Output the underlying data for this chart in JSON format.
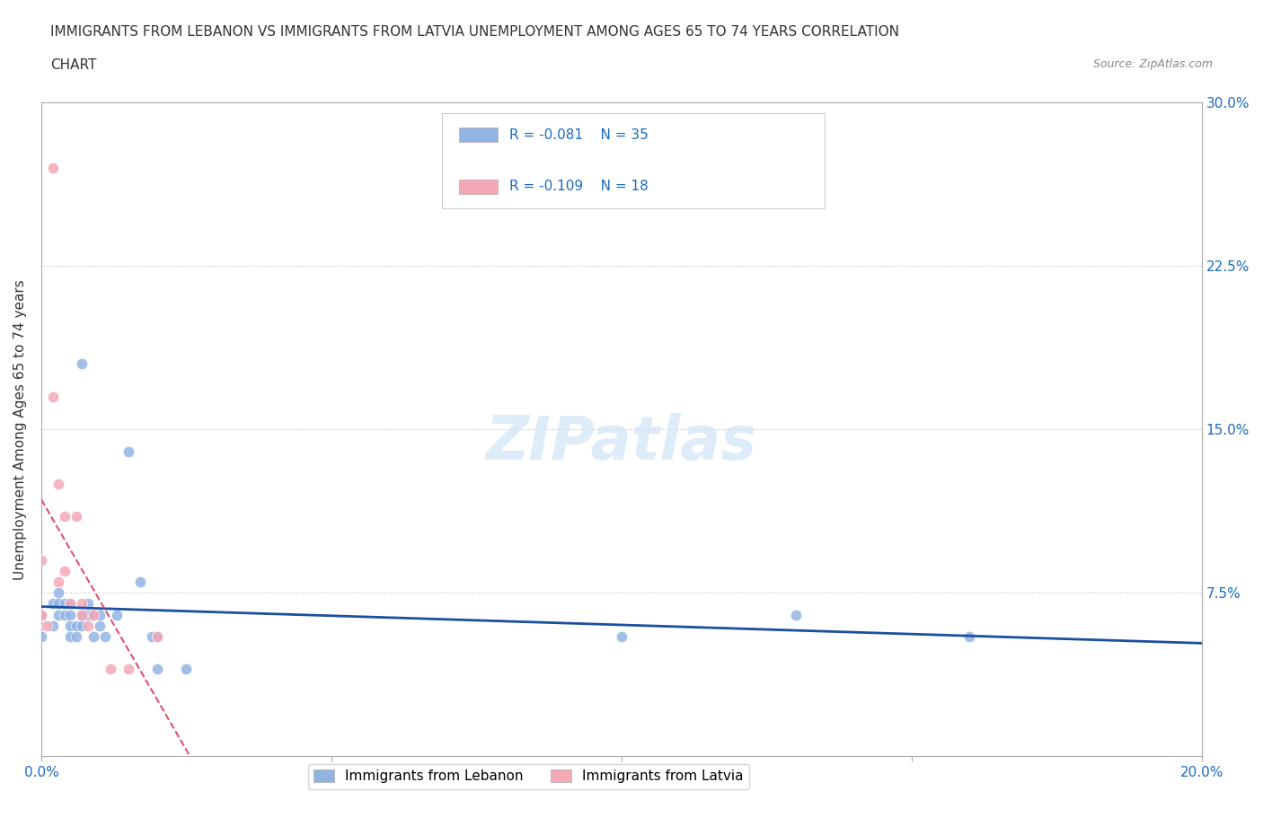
{
  "title_line1": "IMMIGRANTS FROM LEBANON VS IMMIGRANTS FROM LATVIA UNEMPLOYMENT AMONG AGES 65 TO 74 YEARS CORRELATION",
  "title_line2": "CHART",
  "source": "Source: ZipAtlas.com",
  "xlabel": "",
  "ylabel": "Unemployment Among Ages 65 to 74 years",
  "xlim": [
    0,
    0.2
  ],
  "ylim": [
    0,
    0.3
  ],
  "xticks": [
    0.0,
    0.05,
    0.1,
    0.15,
    0.2
  ],
  "xtick_labels": [
    "0.0%",
    "",
    "",
    "",
    "20.0%"
  ],
  "yticks": [
    0.0,
    0.075,
    0.15,
    0.225,
    0.3
  ],
  "ytick_labels": [
    "",
    "7.5%",
    "15.0%",
    "22.5%",
    "30.0%"
  ],
  "legend_label1": "Immigrants from Lebanon",
  "legend_label2": "Immigrants from Latvia",
  "r_lebanon": -0.081,
  "n_lebanon": 35,
  "r_latvia": -0.109,
  "n_latvia": 18,
  "color_lebanon": "#92b4e3",
  "color_latvia": "#f4a8b8",
  "line_color_lebanon": "#1a4fa0",
  "line_color_latvia": "#e05070",
  "watermark": "ZIPatlas",
  "lebanon_x": [
    0.0,
    0.0,
    0.002,
    0.002,
    0.003,
    0.003,
    0.003,
    0.004,
    0.004,
    0.005,
    0.005,
    0.005,
    0.005,
    0.006,
    0.006,
    0.007,
    0.007,
    0.007,
    0.008,
    0.008,
    0.009,
    0.009,
    0.01,
    0.01,
    0.011,
    0.013,
    0.015,
    0.017,
    0.019,
    0.02,
    0.02,
    0.025,
    0.1,
    0.13,
    0.16
  ],
  "lebanon_y": [
    0.055,
    0.065,
    0.07,
    0.06,
    0.065,
    0.07,
    0.075,
    0.065,
    0.07,
    0.055,
    0.06,
    0.065,
    0.07,
    0.055,
    0.06,
    0.06,
    0.065,
    0.18,
    0.065,
    0.07,
    0.055,
    0.065,
    0.06,
    0.065,
    0.055,
    0.065,
    0.14,
    0.08,
    0.055,
    0.055,
    0.04,
    0.04,
    0.055,
    0.065,
    0.055
  ],
  "latvia_x": [
    0.0,
    0.0,
    0.001,
    0.002,
    0.002,
    0.003,
    0.003,
    0.004,
    0.004,
    0.005,
    0.006,
    0.007,
    0.007,
    0.008,
    0.009,
    0.012,
    0.015,
    0.02
  ],
  "latvia_y": [
    0.065,
    0.09,
    0.06,
    0.27,
    0.165,
    0.08,
    0.125,
    0.085,
    0.11,
    0.07,
    0.11,
    0.065,
    0.07,
    0.06,
    0.065,
    0.04,
    0.04,
    0.055
  ]
}
